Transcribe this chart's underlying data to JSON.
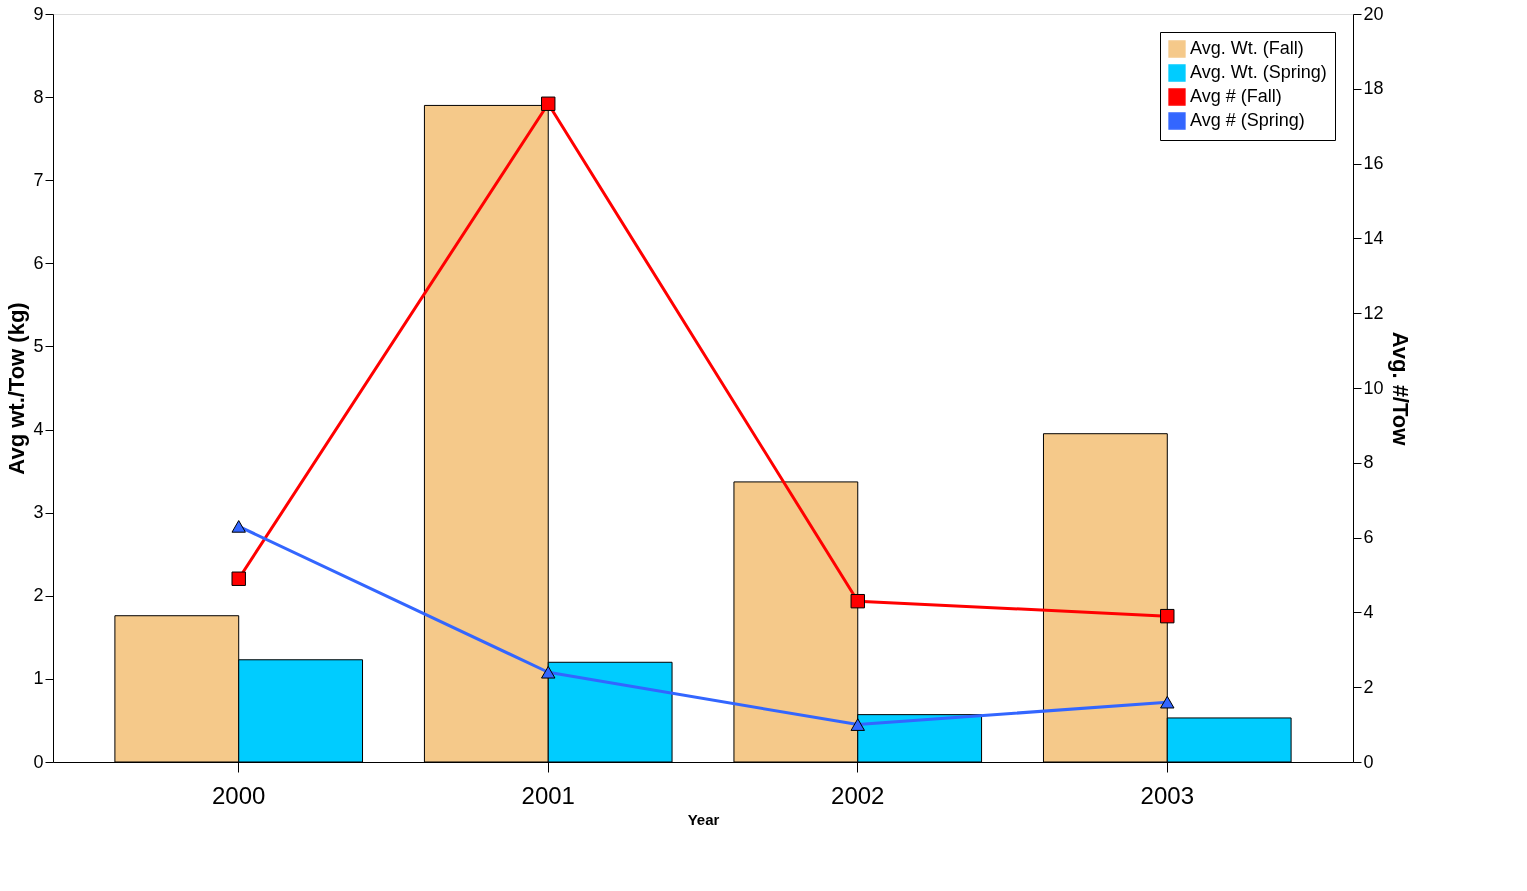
{
  "chart_data": {
    "type": "bar",
    "xlabel": "Year",
    "ylabel": "Avg wt./Tow (kg)",
    "y2label": "Avg. #/Tow",
    "categories": [
      "2000",
      "2001",
      "2002",
      "2003"
    ],
    "series": [
      {
        "name": "Avg. Wt. (Fall)",
        "color": "#f5c98a",
        "values": [
          1.76,
          7.9,
          3.37,
          3.95
        ]
      },
      {
        "name": "Avg. Wt. (Spring)",
        "color": "#00ccff",
        "values": [
          1.23,
          1.2,
          0.57,
          0.53
        ]
      },
      {
        "name": "Avg # (Fall)",
        "type": "line",
        "axis": "y2",
        "marker": "square",
        "color": "#ff0000",
        "values": [
          4.9,
          17.6,
          4.3,
          3.9
        ]
      },
      {
        "name": "Avg # (Spring)",
        "type": "line",
        "axis": "y2",
        "marker": "triangle",
        "color": "#3366ff",
        "values": [
          6.3,
          2.4,
          1.0,
          1.6
        ]
      }
    ],
    "ylim": [
      0,
      9
    ],
    "yticks": [
      0,
      1,
      2,
      3,
      4,
      5,
      6,
      7,
      8,
      9
    ],
    "y2lim": [
      0,
      20
    ],
    "y2ticks": [
      0,
      2,
      4,
      6,
      8,
      10,
      12,
      14,
      16,
      18,
      20
    ],
    "legend": "top right",
    "grid": false
  }
}
